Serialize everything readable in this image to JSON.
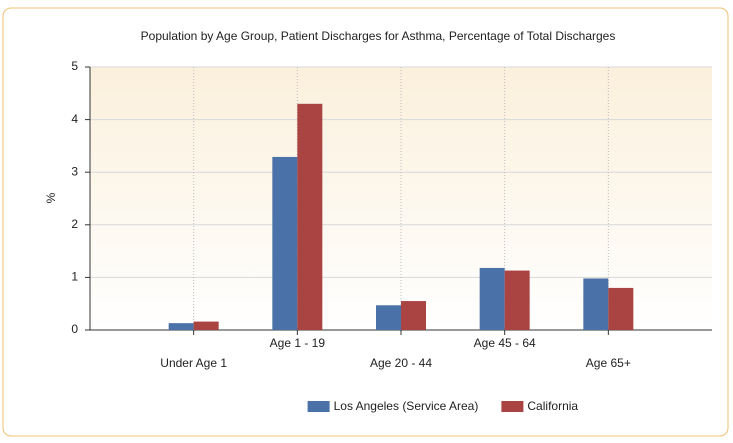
{
  "chart_data": {
    "type": "bar",
    "title": "Population by Age Group, Patient Discharges for Asthma, Percentage of Total Discharges",
    "y_label": "%",
    "categories": [
      "Under Age 1",
      "Age 1 - 19",
      "Age 20 - 44",
      "Age 45 - 64",
      "Age 65+"
    ],
    "series": [
      {
        "name": "Los Angeles (Service Area)",
        "color": "#4a72a8",
        "values": [
          0.13,
          3.29,
          0.47,
          1.18,
          0.98
        ]
      },
      {
        "name": "California",
        "color": "#a94442",
        "values": [
          0.16,
          4.3,
          0.55,
          1.13,
          0.8
        ]
      }
    ],
    "ylim": [
      0,
      5
    ],
    "yticks": [
      0,
      1,
      2,
      3,
      4,
      5
    ],
    "grid": true,
    "legend": "bottom"
  }
}
